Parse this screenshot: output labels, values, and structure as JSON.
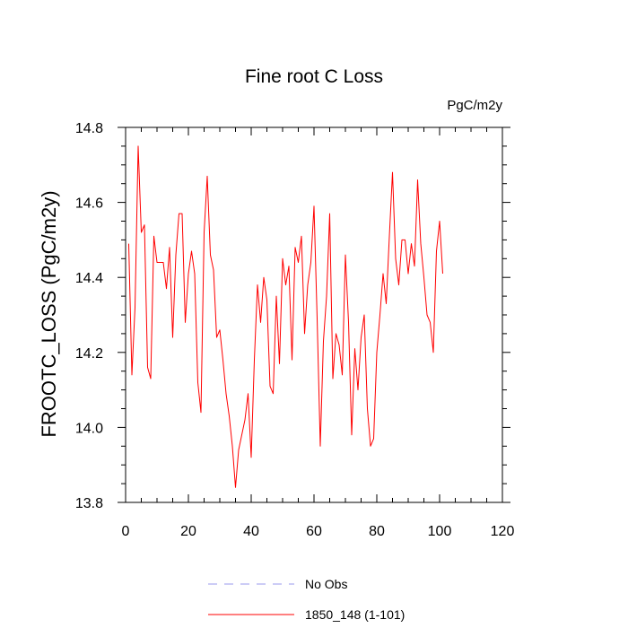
{
  "chart_data": {
    "type": "line",
    "title": "Fine root C Loss",
    "units_label": "PgC/m2y",
    "ylabel": "FROOTC_LOSS  (PgC/m2y)",
    "xlabel": "",
    "xlim": [
      0,
      120
    ],
    "ylim": [
      13.8,
      14.8
    ],
    "x_ticks": [
      0,
      20,
      40,
      60,
      80,
      100,
      120
    ],
    "y_ticks": [
      13.8,
      14.0,
      14.2,
      14.4,
      14.6,
      14.8
    ],
    "x_tick_labels": [
      "0",
      "20",
      "40",
      "60",
      "80",
      "100",
      "120"
    ],
    "y_tick_labels": [
      "13.8",
      "14.0",
      "14.2",
      "14.4",
      "14.6",
      "14.8"
    ],
    "grid": false,
    "legend_position": "bottom-center",
    "legend": [
      {
        "label": "No Obs",
        "style": "dashed",
        "color": "#9999ee"
      },
      {
        "label": "1850_148 (1-101)",
        "style": "solid",
        "color": "#ff0000"
      }
    ],
    "series": [
      {
        "name": "1850_148 (1-101)",
        "color": "#ff0000",
        "x": [
          1,
          2,
          3,
          4,
          5,
          6,
          7,
          8,
          9,
          10,
          11,
          12,
          13,
          14,
          15,
          16,
          17,
          18,
          19,
          20,
          21,
          22,
          23,
          24,
          25,
          26,
          27,
          28,
          29,
          30,
          31,
          32,
          33,
          34,
          35,
          36,
          37,
          38,
          39,
          40,
          41,
          42,
          43,
          44,
          45,
          46,
          47,
          48,
          49,
          50,
          51,
          52,
          53,
          54,
          55,
          56,
          57,
          58,
          59,
          60,
          61,
          62,
          63,
          64,
          65,
          66,
          67,
          68,
          69,
          70,
          71,
          72,
          73,
          74,
          75,
          76,
          77,
          78,
          79,
          80,
          81,
          82,
          83,
          84,
          85,
          86,
          87,
          88,
          89,
          90,
          91,
          92,
          93,
          94,
          95,
          96,
          97,
          98,
          99,
          100,
          101
        ],
        "y": [
          14.49,
          14.14,
          14.32,
          14.75,
          14.52,
          14.54,
          14.16,
          14.13,
          14.51,
          14.44,
          14.44,
          14.44,
          14.37,
          14.48,
          14.24,
          14.46,
          14.57,
          14.57,
          14.28,
          14.41,
          14.47,
          14.41,
          14.12,
          14.04,
          14.52,
          14.67,
          14.46,
          14.42,
          14.24,
          14.26,
          14.18,
          14.09,
          14.03,
          13.95,
          13.84,
          13.94,
          13.98,
          14.02,
          14.09,
          13.92,
          14.18,
          14.38,
          14.28,
          14.4,
          14.34,
          14.11,
          14.09,
          14.35,
          14.17,
          14.45,
          14.38,
          14.43,
          14.18,
          14.48,
          14.44,
          14.51,
          14.25,
          14.38,
          14.44,
          14.59,
          14.29,
          13.95,
          14.23,
          14.35,
          14.57,
          14.13,
          14.25,
          14.22,
          14.14,
          14.46,
          14.28,
          13.98,
          14.21,
          14.1,
          14.24,
          14.3,
          14.05,
          13.95,
          13.97,
          14.2,
          14.3,
          14.41,
          14.33,
          14.51,
          14.68,
          14.45,
          14.38,
          14.5,
          14.5,
          14.41,
          14.49,
          14.43,
          14.66,
          14.49,
          14.4,
          14.3,
          14.28,
          14.2,
          14.47,
          14.55,
          14.41
        ]
      }
    ]
  }
}
